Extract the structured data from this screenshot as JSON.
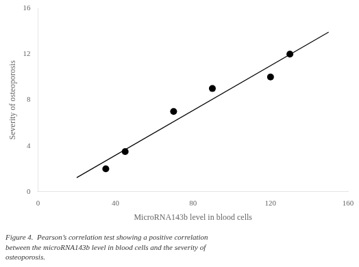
{
  "chart_data": {
    "type": "scatter",
    "caption": "Figure 4.  Pearson’s correlation test showing a positive correlation\nbetween the microRNA143b level in blood cells and the severity of\nosteoporosis.",
    "xlabel": "MicroRNA143b level in blood cells",
    "ylabel": "Severity of osteoporosis",
    "series": [
      {
        "type": "scatter",
        "color": "#000000",
        "marker": "circle",
        "x": [
          35,
          45,
          70,
          90,
          120,
          130
        ],
        "values": [
          2,
          3.5,
          7,
          9,
          10,
          12
        ]
      },
      {
        "type": "line",
        "color": "#000000",
        "line_style": "solid",
        "x": [
          20,
          150
        ],
        "values": [
          1.23340708,
          13.917035398
        ]
      }
    ],
    "xlim": [
      0,
      160
    ],
    "ylim": [
      0,
      16
    ],
    "xticks": [
      0,
      40,
      80,
      120,
      160
    ],
    "yticks": [
      0,
      4,
      8,
      12,
      16
    ],
    "grid": false
  }
}
